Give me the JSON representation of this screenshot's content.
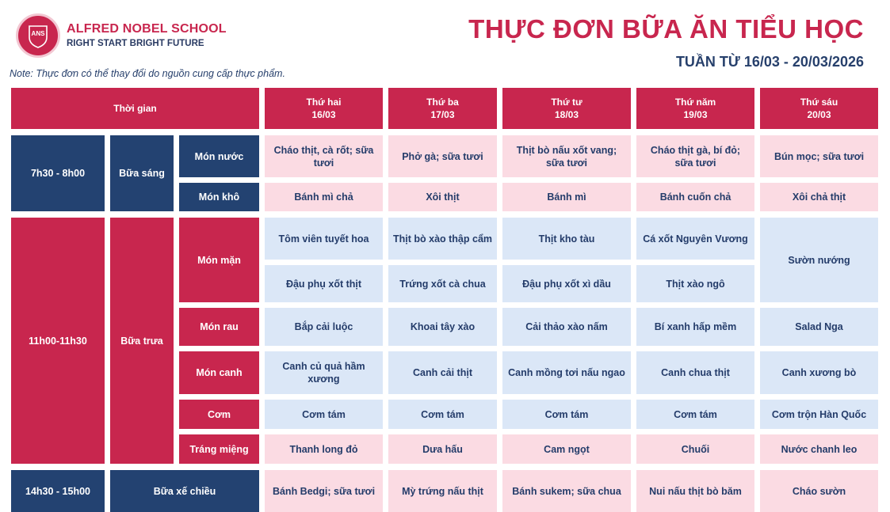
{
  "header": {
    "school_name": "ALFRED NOBEL SCHOOL",
    "slogan": "RIGHT START  BRIGHT FUTURE",
    "logo_text": "ANS",
    "title": "THỰC ĐƠN BỮA ĂN TIỂU HỌC",
    "week": "TUẦN TỪ 16/03 - 20/03/2026",
    "note": "Note: Thực đơn có thể thay đổi do nguồn cung cấp thực phẩm."
  },
  "table": {
    "time_header": "Thời gian",
    "days": [
      {
        "name": "Thứ hai",
        "date": "16/03"
      },
      {
        "name": "Thứ ba",
        "date": "17/03"
      },
      {
        "name": "Thứ tư",
        "date": "18/03"
      },
      {
        "name": "Thứ năm",
        "date": "19/03"
      },
      {
        "name": "Thứ sáu",
        "date": "20/03"
      }
    ],
    "breakfast": {
      "time": "7h30 - 8h00",
      "meal": "Bữa sáng",
      "mon_nuoc": {
        "label": "Món nước",
        "items": [
          "Cháo thịt, cà rốt; sữa tươi",
          "Phở gà; sữa tươi",
          "Thịt bò nấu xốt vang; sữa tươi",
          "Cháo thịt gà, bí đỏ; sữa tươi",
          "Bún mọc; sữa tươi"
        ]
      },
      "mon_kho": {
        "label": "Món khô",
        "items": [
          "Bánh mì chả",
          "Xôi thịt",
          "Bánh mì",
          "Bánh cuốn chả",
          "Xôi chả thịt"
        ]
      }
    },
    "lunch": {
      "time": "11h00-11h30",
      "meal": "Bữa trưa",
      "mon_man": {
        "label": "Món mặn",
        "row1": [
          "Tôm viên tuyết hoa",
          "Thịt bò xào thập cẩm",
          "Thịt kho tàu",
          "Cá xốt Nguyên Vương"
        ],
        "row2": [
          "Đậu phụ xốt thịt",
          "Trứng xốt cà chua",
          "Đậu phụ xốt xì dầu",
          "Thịt xào ngô"
        ],
        "friday": "Sườn nướng"
      },
      "mon_rau": {
        "label": "Món rau",
        "items": [
          "Bắp cải luộc",
          "Khoai tây xào",
          "Cải thảo xào nấm",
          "Bí xanh hấp mềm",
          "Salad Nga"
        ]
      },
      "mon_canh": {
        "label": "Món canh",
        "items": [
          "Canh củ quả hầm xương",
          "Canh cải thịt",
          "Canh mồng tơi nấu ngao",
          "Canh chua thịt",
          "Canh xương bò"
        ]
      },
      "com": {
        "label": "Cơm",
        "items": [
          "Cơm tám",
          "Cơm tám",
          "Cơm tám",
          "Cơm tám",
          "Cơm trộn Hàn Quốc"
        ]
      },
      "trang_mieng": {
        "label": "Tráng miệng",
        "items": [
          "Thanh long đỏ",
          "Dưa hấu",
          "Cam ngọt",
          "Chuối",
          "Nước chanh leo"
        ]
      }
    },
    "snack": {
      "time": "14h30 - 15h00",
      "meal": "Bữa xế chiều",
      "items": [
        "Bánh Bedgi; sữa tươi",
        "Mỳ trứng nấu thịt",
        "Bánh sukem; sữa chua",
        "Nui nấu thịt bò băm",
        "Cháo sườn"
      ]
    }
  }
}
